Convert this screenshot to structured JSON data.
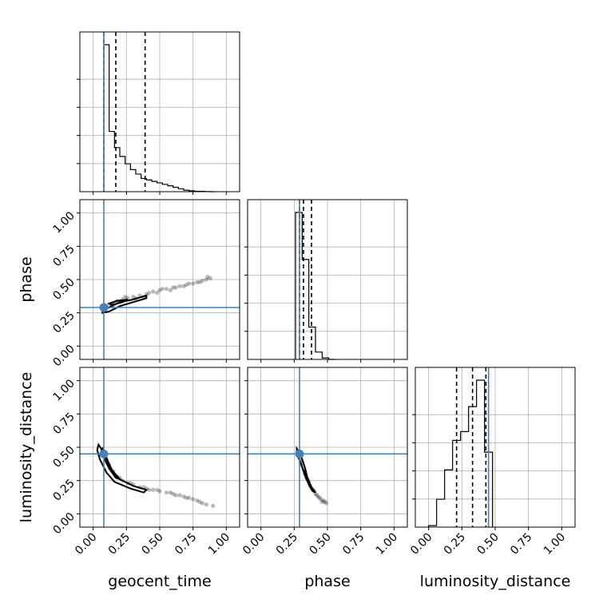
{
  "chart_data": {
    "type": "corner",
    "parameters": [
      "geocent_time",
      "phase",
      "luminosity_distance"
    ],
    "truths": {
      "geocent_time": 0.08,
      "phase": 0.29,
      "luminosity_distance": 0.45
    },
    "axis_range": [
      -0.1,
      1.1
    ],
    "ticks": [
      0.0,
      0.25,
      0.5,
      0.75,
      1.0
    ],
    "tick_labels": [
      "0.00",
      "0.25",
      "0.50",
      "0.75",
      "1.00"
    ],
    "grid": true,
    "truth_color": "#4682b4",
    "marginals": [
      {
        "parameter": "geocent_time",
        "quantile_lines": [
          0.08,
          0.17,
          0.39
        ],
        "bin_edges": [
          0.08,
          0.12,
          0.16,
          0.2,
          0.24,
          0.28,
          0.32,
          0.36,
          0.4,
          0.44,
          0.48,
          0.52,
          0.56,
          0.6,
          0.64,
          0.68,
          0.72,
          0.76,
          0.8,
          0.84,
          0.88,
          0.92
        ],
        "counts": [
          1.0,
          0.41,
          0.3,
          0.24,
          0.19,
          0.15,
          0.12,
          0.09,
          0.08,
          0.07,
          0.06,
          0.05,
          0.04,
          0.03,
          0.02,
          0.01,
          0.006,
          0.003,
          0.002,
          0.001,
          0.0
        ]
      },
      {
        "parameter": "phase",
        "quantile_lines": [
          0.29,
          0.32,
          0.38
        ],
        "bin_edges": [
          0.26,
          0.31,
          0.36,
          0.41,
          0.46,
          0.51,
          0.56
        ],
        "counts": [
          1.0,
          0.68,
          0.22,
          0.05,
          0.01,
          0.0
        ]
      },
      {
        "parameter": "luminosity_distance",
        "quantile_lines": [
          0.21,
          0.33,
          0.43
        ],
        "bin_edges": [
          0.0,
          0.06,
          0.12,
          0.18,
          0.24,
          0.3,
          0.36,
          0.42,
          0.48
        ],
        "counts": [
          0.01,
          0.19,
          0.39,
          0.59,
          0.65,
          0.82,
          1.0,
          0.51
        ]
      }
    ],
    "scatter_panels": [
      {
        "x": "geocent_time",
        "y": "phase",
        "points": [
          [
            0.09,
            0.29
          ],
          [
            0.12,
            0.31
          ],
          [
            0.15,
            0.32
          ],
          [
            0.18,
            0.34
          ],
          [
            0.22,
            0.35
          ],
          [
            0.26,
            0.36
          ],
          [
            0.3,
            0.37
          ],
          [
            0.35,
            0.38
          ],
          [
            0.4,
            0.39
          ],
          [
            0.45,
            0.41
          ],
          [
            0.5,
            0.42
          ],
          [
            0.55,
            0.43
          ],
          [
            0.6,
            0.44
          ],
          [
            0.65,
            0.45
          ],
          [
            0.7,
            0.46
          ],
          [
            0.75,
            0.47
          ],
          [
            0.8,
            0.48
          ],
          [
            0.85,
            0.5
          ],
          [
            0.88,
            0.51
          ],
          [
            0.2,
            0.33
          ],
          [
            0.32,
            0.36
          ],
          [
            0.42,
            0.4
          ],
          [
            0.52,
            0.43
          ],
          [
            0.62,
            0.44
          ],
          [
            0.72,
            0.47
          ],
          [
            0.82,
            0.49
          ],
          [
            0.14,
            0.3
          ],
          [
            0.24,
            0.37
          ],
          [
            0.38,
            0.37
          ],
          [
            0.48,
            0.4
          ],
          [
            0.58,
            0.42
          ],
          [
            0.68,
            0.45
          ],
          [
            0.78,
            0.48
          ],
          [
            0.86,
            0.52
          ]
        ],
        "contours": [
          [
            [
              0.07,
              0.27
            ],
            [
              0.12,
              0.29
            ],
            [
              0.2,
              0.33
            ],
            [
              0.3,
              0.35
            ],
            [
              0.4,
              0.38
            ],
            [
              0.4,
              0.36
            ],
            [
              0.3,
              0.33
            ],
            [
              0.2,
              0.3
            ],
            [
              0.12,
              0.26
            ],
            [
              0.07,
              0.25
            ]
          ],
          [
            [
              0.12,
              0.32
            ],
            [
              0.18,
              0.34
            ],
            [
              0.26,
              0.35
            ],
            [
              0.22,
              0.33
            ],
            [
              0.14,
              0.31
            ]
          ]
        ]
      },
      {
        "x": "geocent_time",
        "y": "luminosity_distance",
        "points": [
          [
            0.08,
            0.45
          ],
          [
            0.1,
            0.41
          ],
          [
            0.12,
            0.37
          ],
          [
            0.15,
            0.32
          ],
          [
            0.18,
            0.28
          ],
          [
            0.22,
            0.25
          ],
          [
            0.26,
            0.23
          ],
          [
            0.3,
            0.22
          ],
          [
            0.35,
            0.2
          ],
          [
            0.4,
            0.19
          ],
          [
            0.45,
            0.18
          ],
          [
            0.5,
            0.17
          ],
          [
            0.55,
            0.16
          ],
          [
            0.6,
            0.15
          ],
          [
            0.65,
            0.14
          ],
          [
            0.7,
            0.12
          ],
          [
            0.75,
            0.11
          ],
          [
            0.8,
            0.09
          ],
          [
            0.85,
            0.07
          ],
          [
            0.9,
            0.06
          ],
          [
            0.38,
            0.2
          ],
          [
            0.48,
            0.18
          ],
          [
            0.58,
            0.16
          ],
          [
            0.68,
            0.13
          ],
          [
            0.78,
            0.1
          ],
          [
            0.28,
            0.23
          ],
          [
            0.2,
            0.27
          ],
          [
            0.13,
            0.34
          ],
          [
            0.42,
            0.18
          ],
          [
            0.62,
            0.14
          ],
          [
            0.72,
            0.12
          ],
          [
            0.82,
            0.08
          ]
        ],
        "contours": [
          [
            [
              0.04,
              0.52
            ],
            [
              0.08,
              0.46
            ],
            [
              0.12,
              0.36
            ],
            [
              0.18,
              0.27
            ],
            [
              0.3,
              0.21
            ],
            [
              0.4,
              0.18
            ],
            [
              0.38,
              0.16
            ],
            [
              0.28,
              0.19
            ],
            [
              0.16,
              0.24
            ],
            [
              0.1,
              0.31
            ],
            [
              0.05,
              0.41
            ],
            [
              0.03,
              0.48
            ]
          ],
          [
            [
              0.07,
              0.49
            ],
            [
              0.1,
              0.42
            ],
            [
              0.14,
              0.33
            ],
            [
              0.2,
              0.26
            ],
            [
              0.17,
              0.27
            ],
            [
              0.12,
              0.34
            ],
            [
              0.08,
              0.42
            ],
            [
              0.06,
              0.47
            ]
          ]
        ]
      },
      {
        "x": "phase",
        "y": "luminosity_distance",
        "points": [
          [
            0.28,
            0.47
          ],
          [
            0.29,
            0.44
          ],
          [
            0.3,
            0.41
          ],
          [
            0.31,
            0.37
          ],
          [
            0.32,
            0.34
          ],
          [
            0.33,
            0.3
          ],
          [
            0.34,
            0.27
          ],
          [
            0.36,
            0.24
          ],
          [
            0.37,
            0.21
          ],
          [
            0.38,
            0.19
          ],
          [
            0.4,
            0.17
          ],
          [
            0.41,
            0.15
          ],
          [
            0.43,
            0.13
          ],
          [
            0.45,
            0.11
          ],
          [
            0.47,
            0.1
          ],
          [
            0.49,
            0.08
          ],
          [
            0.35,
            0.26
          ],
          [
            0.39,
            0.18
          ],
          [
            0.42,
            0.14
          ],
          [
            0.44,
            0.12
          ],
          [
            0.46,
            0.09
          ],
          [
            0.3,
            0.39
          ],
          [
            0.33,
            0.32
          ],
          [
            0.48,
            0.09
          ]
        ],
        "contours": [
          [
            [
              0.27,
              0.49
            ],
            [
              0.3,
              0.44
            ],
            [
              0.33,
              0.35
            ],
            [
              0.35,
              0.27
            ],
            [
              0.38,
              0.2
            ],
            [
              0.41,
              0.16
            ],
            [
              0.39,
              0.17
            ],
            [
              0.36,
              0.22
            ],
            [
              0.33,
              0.29
            ],
            [
              0.3,
              0.38
            ],
            [
              0.27,
              0.45
            ]
          ],
          [
            [
              0.32,
              0.33
            ],
            [
              0.34,
              0.29
            ],
            [
              0.36,
              0.25
            ],
            [
              0.35,
              0.27
            ],
            [
              0.33,
              0.31
            ]
          ]
        ]
      }
    ]
  }
}
